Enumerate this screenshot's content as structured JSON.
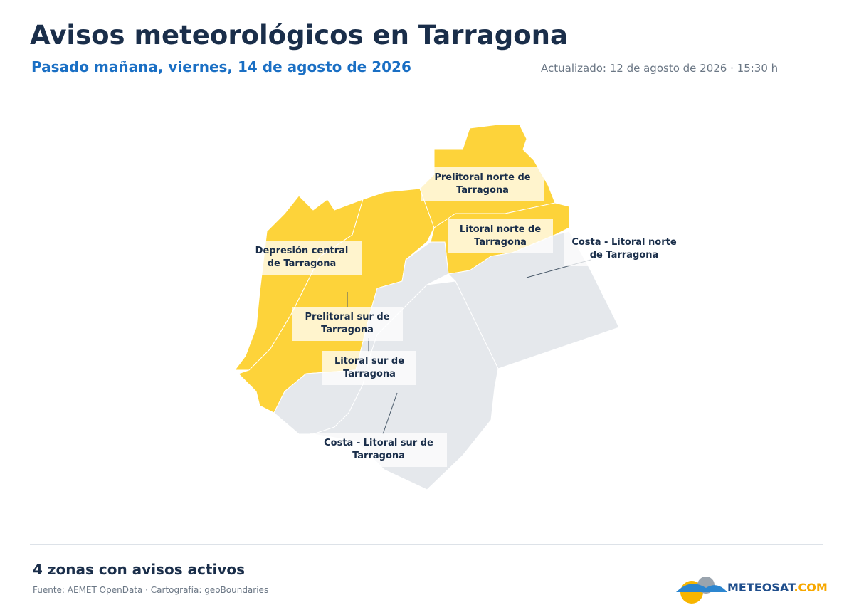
{
  "header": {
    "title": "Avisos meteorológicos en Tarragona",
    "subtitle": "Pasado mañana, viernes, 14 de agosto de 2026",
    "updated": "Actualizado: 12 de agosto de 2026 · 15:30 h"
  },
  "map": {
    "zones": [
      {
        "label": "Depresión central de Tarragona",
        "color": "#fdd33a"
      },
      {
        "label": "Prelitoral sur de Tarragona",
        "color": "#fdd33a"
      },
      {
        "label": "Prelitoral norte de Tarragona",
        "color": "#fdd33a"
      },
      {
        "label": "Litoral norte de Tarragona",
        "color": "#fdd33a"
      },
      {
        "label": "Litoral sur de Tarragona",
        "color": "#e5e8ec"
      },
      {
        "label": "Costa - Litoral norte de Tarragona",
        "color": "#e5e8ec"
      },
      {
        "label": "Costa - Litoral sur de Tarragona",
        "color": "#e5e8ec"
      }
    ]
  },
  "footer": {
    "summary": "4 zonas con avisos activos",
    "source": "Fuente: AEMET OpenData · Cartografía: geoBoundaries",
    "logo": [
      "METEOSAT",
      ".COM"
    ]
  }
}
